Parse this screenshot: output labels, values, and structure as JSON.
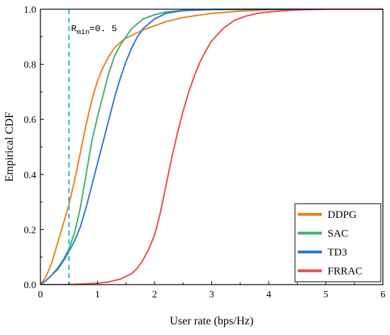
{
  "chart_data": {
    "type": "line",
    "xlabel": "User rate (bps/Hz)",
    "ylabel": "Empirical CDF",
    "xlim": [
      0,
      6
    ],
    "ylim": [
      0,
      1.0
    ],
    "xticks": [
      0,
      1,
      2,
      3,
      4,
      5,
      6
    ],
    "xtick_labels": [
      "0",
      "1",
      "2",
      "3",
      "4",
      "5",
      "6"
    ],
    "yticks": [
      0,
      0.2,
      0.4,
      0.6,
      0.8,
      1.0
    ],
    "ytick_labels": [
      "0.0",
      "0.2",
      "0.4",
      "0.6",
      "0.8",
      "1.0"
    ],
    "grid": false,
    "legend_position": "bottom-right",
    "annotation": {
      "label_main": "R",
      "label_sub": "min",
      "label_value": "=0. 5",
      "x": 0.5,
      "color": "#1FB7D4",
      "style": "dashed"
    },
    "series": [
      {
        "name": "DDPG",
        "color": "#F07F1A",
        "x": [
          0,
          0.1,
          0.2,
          0.3,
          0.4,
          0.5,
          0.6,
          0.7,
          0.8,
          0.9,
          1.0,
          1.1,
          1.2,
          1.3,
          1.4,
          1.5,
          1.6,
          1.8,
          2.0,
          2.2,
          2.5,
          3.0,
          3.5,
          4.0,
          5.0,
          6.0
        ],
        "y": [
          0,
          0.03,
          0.08,
          0.15,
          0.22,
          0.29,
          0.38,
          0.48,
          0.58,
          0.67,
          0.74,
          0.79,
          0.83,
          0.86,
          0.88,
          0.895,
          0.905,
          0.925,
          0.94,
          0.955,
          0.97,
          0.985,
          0.993,
          0.998,
          1.0,
          1.0
        ]
      },
      {
        "name": "SAC",
        "color": "#3CB371",
        "x": [
          0,
          0.1,
          0.2,
          0.3,
          0.4,
          0.5,
          0.6,
          0.7,
          0.8,
          0.9,
          1.0,
          1.1,
          1.2,
          1.3,
          1.4,
          1.5,
          1.6,
          1.8,
          2.0,
          2.2,
          2.5,
          3.0,
          4.0,
          6.0
        ],
        "y": [
          0,
          0.015,
          0.035,
          0.06,
          0.09,
          0.13,
          0.19,
          0.28,
          0.4,
          0.52,
          0.61,
          0.69,
          0.77,
          0.83,
          0.87,
          0.9,
          0.93,
          0.965,
          0.98,
          0.99,
          0.996,
          0.999,
          1.0,
          1.0
        ]
      },
      {
        "name": "TD3",
        "color": "#2E78D8",
        "x": [
          0,
          0.1,
          0.2,
          0.3,
          0.4,
          0.5,
          0.6,
          0.7,
          0.8,
          0.9,
          1.0,
          1.1,
          1.2,
          1.3,
          1.4,
          1.5,
          1.6,
          1.7,
          1.8,
          2.0,
          2.2,
          2.5,
          3.0,
          4.0,
          6.0
        ],
        "y": [
          0,
          0.015,
          0.035,
          0.055,
          0.085,
          0.12,
          0.16,
          0.21,
          0.28,
          0.36,
          0.44,
          0.52,
          0.6,
          0.68,
          0.75,
          0.81,
          0.86,
          0.9,
          0.93,
          0.965,
          0.985,
          0.995,
          0.999,
          1.0,
          1.0
        ]
      },
      {
        "name": "FRRAC",
        "color": "#E84C4C",
        "x": [
          0,
          0.5,
          1.0,
          1.2,
          1.4,
          1.6,
          1.7,
          1.8,
          1.9,
          2.0,
          2.1,
          2.2,
          2.3,
          2.4,
          2.5,
          2.6,
          2.7,
          2.8,
          2.9,
          3.0,
          3.2,
          3.4,
          3.6,
          3.8,
          4.0,
          4.3,
          4.6,
          5.0,
          6.0
        ],
        "y": [
          0,
          0.0,
          0.005,
          0.01,
          0.02,
          0.04,
          0.06,
          0.09,
          0.13,
          0.18,
          0.26,
          0.36,
          0.46,
          0.55,
          0.63,
          0.7,
          0.76,
          0.81,
          0.85,
          0.885,
          0.93,
          0.96,
          0.975,
          0.985,
          0.99,
          0.995,
          0.998,
          1.0,
          1.0
        ]
      }
    ]
  }
}
